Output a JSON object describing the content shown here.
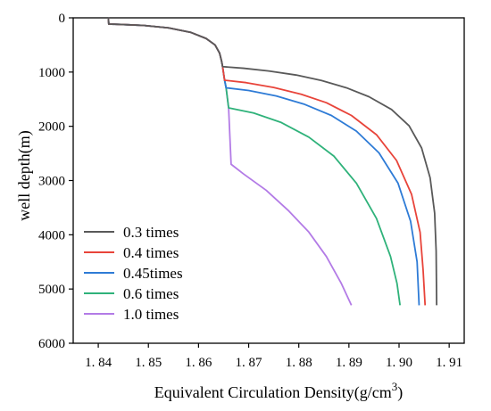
{
  "chart_data": {
    "type": "line",
    "xlabel": "Equivalent Circulation Density(g/cm",
    "xlabel_superscript": "3",
    "xlabel_close": ")",
    "ylabel": "well depth(m)",
    "xlim": [
      1.835,
      1.913
    ],
    "ylim": [
      0,
      6000
    ],
    "y_inverted": true,
    "x_ticks": [
      1.84,
      1.85,
      1.86,
      1.87,
      1.88,
      1.89,
      1.9,
      1.91
    ],
    "x_tick_labels": [
      "1. 84",
      "1. 85",
      "1. 86",
      "1. 87",
      "1. 88",
      "1. 89",
      "1. 90",
      "1. 91"
    ],
    "y_ticks": [
      0,
      1000,
      2000,
      3000,
      4000,
      5000,
      6000
    ],
    "y_tick_labels": [
      "0",
      "1000",
      "2000",
      "3000",
      "4000",
      "5000",
      "6000"
    ],
    "grid": false,
    "legend_position": "lower-left",
    "series": [
      {
        "name": "0.3 times",
        "color": "#595959",
        "points": [
          [
            1.842,
            0
          ],
          [
            1.8421,
            115
          ],
          [
            1.8445,
            122
          ],
          [
            1.849,
            140
          ],
          [
            1.854,
            185
          ],
          [
            1.8585,
            270
          ],
          [
            1.8615,
            380
          ],
          [
            1.8633,
            500
          ],
          [
            1.8642,
            650
          ],
          [
            1.8646,
            800
          ],
          [
            1.8648,
            900
          ],
          [
            1.869,
            930
          ],
          [
            1.874,
            980
          ],
          [
            1.8795,
            1055
          ],
          [
            1.8845,
            1155
          ],
          [
            1.8895,
            1290
          ],
          [
            1.894,
            1455
          ],
          [
            1.8985,
            1690
          ],
          [
            1.902,
            1990
          ],
          [
            1.9045,
            2400
          ],
          [
            1.9062,
            2950
          ],
          [
            1.9071,
            3600
          ],
          [
            1.9074,
            4300
          ],
          [
            1.9075,
            5300
          ]
        ]
      },
      {
        "name": "0.4 times",
        "color": "#e8443a",
        "points": [
          [
            1.842,
            0
          ],
          [
            1.8421,
            115
          ],
          [
            1.8445,
            122
          ],
          [
            1.849,
            140
          ],
          [
            1.854,
            185
          ],
          [
            1.8585,
            270
          ],
          [
            1.8615,
            380
          ],
          [
            1.8633,
            500
          ],
          [
            1.8642,
            650
          ],
          [
            1.8646,
            800
          ],
          [
            1.8648,
            900
          ],
          [
            1.8652,
            1150
          ],
          [
            1.8695,
            1195
          ],
          [
            1.875,
            1285
          ],
          [
            1.8805,
            1410
          ],
          [
            1.8855,
            1565
          ],
          [
            1.8905,
            1800
          ],
          [
            1.8955,
            2155
          ],
          [
            1.8995,
            2630
          ],
          [
            1.9025,
            3255
          ],
          [
            1.9042,
            3955
          ],
          [
            1.9048,
            4650
          ],
          [
            1.9052,
            5300
          ]
        ]
      },
      {
        "name": "0.45times",
        "color": "#2e7bd6",
        "points": [
          [
            1.842,
            0
          ],
          [
            1.8421,
            115
          ],
          [
            1.8445,
            122
          ],
          [
            1.849,
            140
          ],
          [
            1.854,
            185
          ],
          [
            1.8585,
            270
          ],
          [
            1.8615,
            380
          ],
          [
            1.8633,
            500
          ],
          [
            1.8642,
            650
          ],
          [
            1.8646,
            800
          ],
          [
            1.8648,
            900
          ],
          [
            1.8652,
            1150
          ],
          [
            1.8655,
            1290
          ],
          [
            1.87,
            1340
          ],
          [
            1.8755,
            1440
          ],
          [
            1.881,
            1590
          ],
          [
            1.8865,
            1800
          ],
          [
            1.8915,
            2090
          ],
          [
            1.896,
            2490
          ],
          [
            1.8998,
            3050
          ],
          [
            1.9023,
            3750
          ],
          [
            1.9036,
            4500
          ],
          [
            1.904,
            5300
          ]
        ]
      },
      {
        "name": "0.6 times",
        "color": "#2fb27a",
        "points": [
          [
            1.842,
            0
          ],
          [
            1.8421,
            115
          ],
          [
            1.8445,
            122
          ],
          [
            1.849,
            140
          ],
          [
            1.854,
            185
          ],
          [
            1.8585,
            270
          ],
          [
            1.8615,
            380
          ],
          [
            1.8633,
            500
          ],
          [
            1.8642,
            650
          ],
          [
            1.8646,
            800
          ],
          [
            1.8648,
            900
          ],
          [
            1.8652,
            1150
          ],
          [
            1.8655,
            1290
          ],
          [
            1.866,
            1660
          ],
          [
            1.871,
            1755
          ],
          [
            1.8765,
            1930
          ],
          [
            1.882,
            2200
          ],
          [
            1.887,
            2550
          ],
          [
            1.8915,
            3050
          ],
          [
            1.8955,
            3700
          ],
          [
            1.8983,
            4400
          ],
          [
            1.8996,
            4900
          ],
          [
            1.9002,
            5300
          ]
        ]
      },
      {
        "name": "1.0 times",
        "color": "#b37be6",
        "points": [
          [
            1.842,
            0
          ],
          [
            1.8421,
            115
          ],
          [
            1.8445,
            122
          ],
          [
            1.849,
            140
          ],
          [
            1.854,
            185
          ],
          [
            1.8585,
            270
          ],
          [
            1.8615,
            380
          ],
          [
            1.8633,
            500
          ],
          [
            1.8642,
            650
          ],
          [
            1.8646,
            800
          ],
          [
            1.8648,
            900
          ],
          [
            1.8652,
            1150
          ],
          [
            1.8655,
            1290
          ],
          [
            1.866,
            1660
          ],
          [
            1.8665,
            2700
          ],
          [
            1.869,
            2880
          ],
          [
            1.8735,
            3180
          ],
          [
            1.878,
            3560
          ],
          [
            1.882,
            3950
          ],
          [
            1.8855,
            4400
          ],
          [
            1.8885,
            4900
          ],
          [
            1.8905,
            5300
          ]
        ]
      }
    ]
  }
}
